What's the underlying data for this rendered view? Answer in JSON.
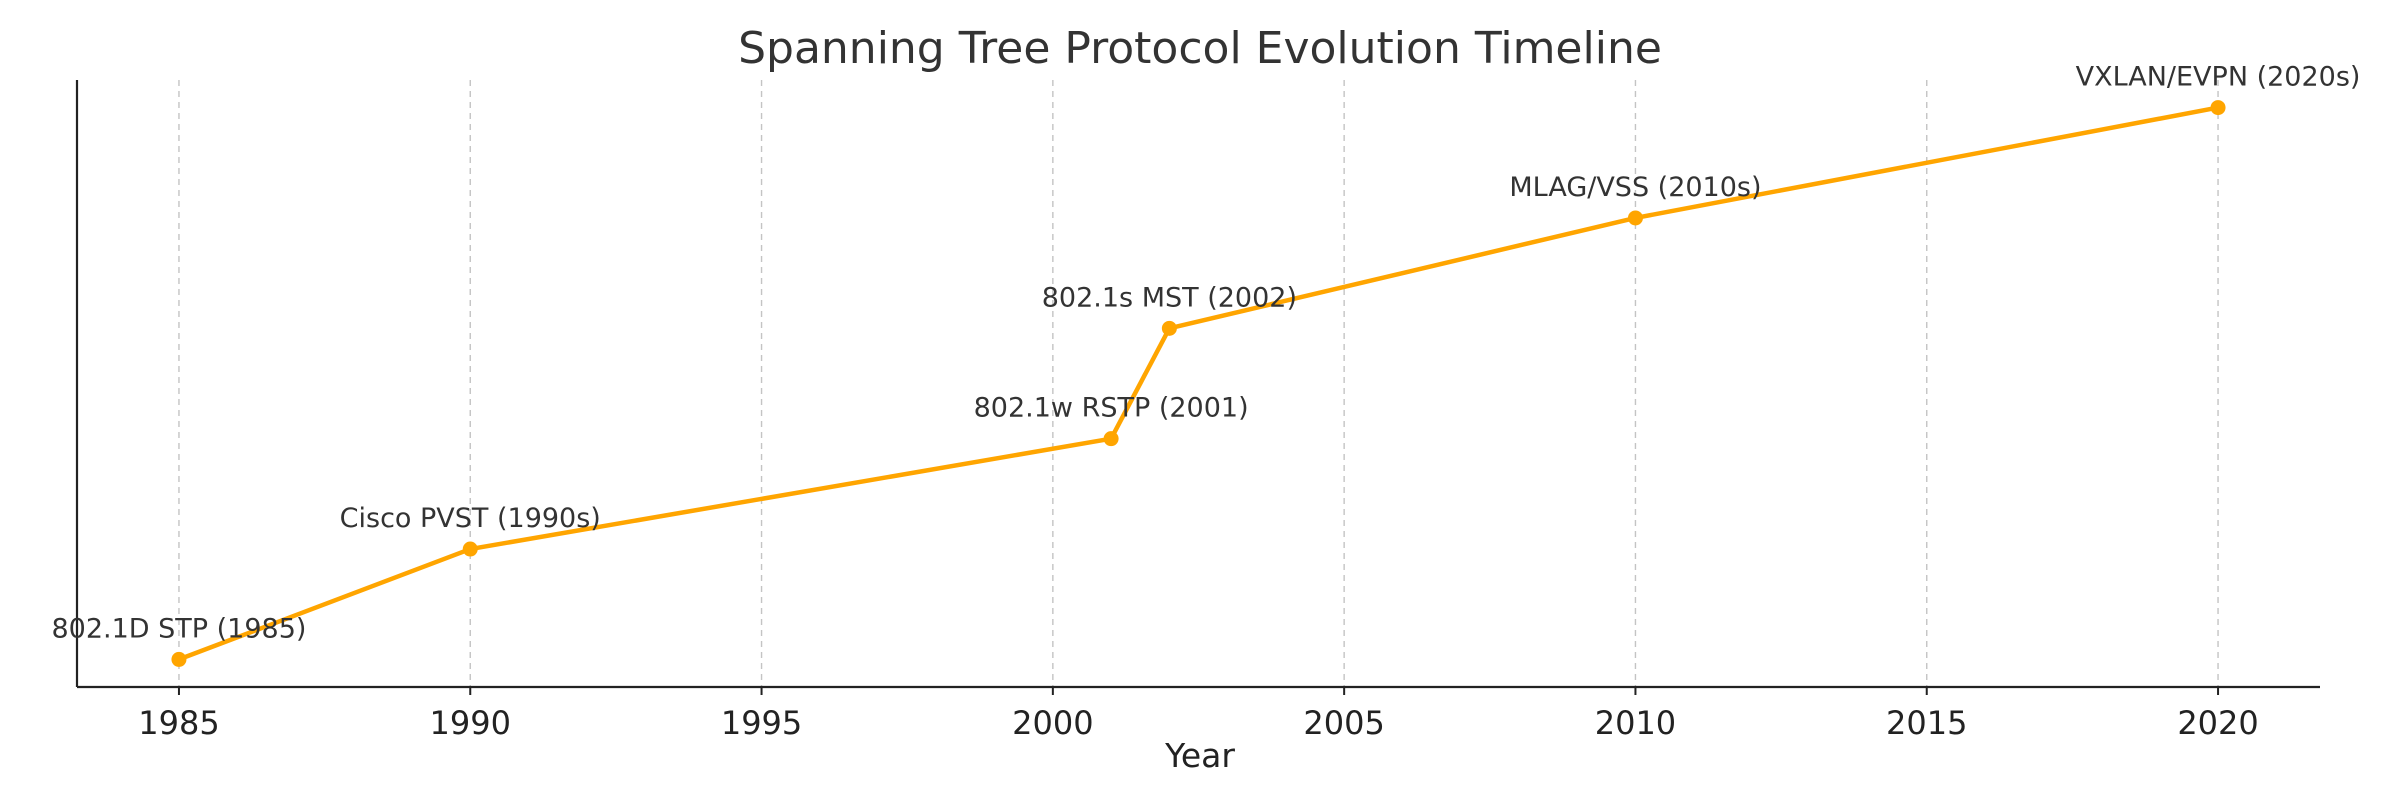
{
  "chart_data": {
    "type": "line",
    "title": "Spanning Tree Protocol Evolution Timeline",
    "xlabel": "Year",
    "ylabel": "",
    "xlim": [
      1983.25,
      2021.75
    ],
    "ylim": [
      0.75,
      6.25
    ],
    "x_ticks": [
      1985,
      1990,
      1995,
      2000,
      2005,
      2010,
      2015,
      2020
    ],
    "grid": "vertical-dashed",
    "show_y_ticks": false,
    "colors": {
      "line": "#FFA500",
      "marker": "#FFA500",
      "grid": "#c4c4c4",
      "axis": "#222222"
    },
    "series": [
      {
        "points": [
          {
            "x": 1985,
            "y": 1,
            "label": "802.1D STP (1985)"
          },
          {
            "x": 1990,
            "y": 2,
            "label": "Cisco PVST (1990s)"
          },
          {
            "x": 2001,
            "y": 3,
            "label": "802.1w RSTP (2001)"
          },
          {
            "x": 2002,
            "y": 4,
            "label": "802.1s MST (2002)"
          },
          {
            "x": 2010,
            "y": 5,
            "label": "MLAG/VSS (2010s)"
          },
          {
            "x": 2020,
            "y": 6,
            "label": "VXLAN/EVPN (2020s)"
          }
        ]
      }
    ]
  }
}
